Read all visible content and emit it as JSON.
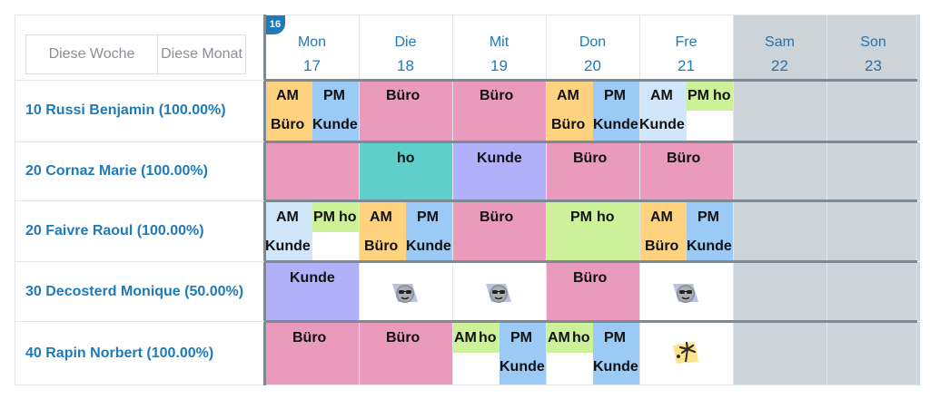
{
  "toolbar": {
    "this_week_label": "Diese Woche",
    "this_month_label": "Diese Monat"
  },
  "week_badge": "16",
  "days": [
    {
      "name": "Mon",
      "date": "17",
      "weekend": false
    },
    {
      "name": "Die",
      "date": "18",
      "weekend": false
    },
    {
      "name": "Mit",
      "date": "19",
      "weekend": false
    },
    {
      "name": "Don",
      "date": "20",
      "weekend": false
    },
    {
      "name": "Fre",
      "date": "21",
      "weekend": false
    },
    {
      "name": "Sam",
      "date": "22",
      "weekend": true
    },
    {
      "name": "Son",
      "date": "23",
      "weekend": true
    }
  ],
  "employees": [
    {
      "label": "10 Russi Benjamin (100.00%)"
    },
    {
      "label": "20 Cornaz Marie (100.00%)"
    },
    {
      "label": "20 Faivre Raoul (100.00%)"
    },
    {
      "label": "30 Decosterd Monique (50.00%)"
    },
    {
      "label": "40 Rapin Norbert (100.00%)"
    }
  ],
  "labels": {
    "am": "AM",
    "pm": "PM",
    "ho": "ho",
    "office": "Büro",
    "client": "Kunde"
  },
  "colors": {
    "accent": "#1e7ab8",
    "office": "#e99abd",
    "client": "#b1b1fb",
    "homeoffice_teal": "#5ecfcb",
    "homeoffice_green": "#cdf199",
    "am_orange": "#ffd27f",
    "pm_blue": "#9ccaf7",
    "light_blue": "#d2e6fa",
    "weekend": "#ccd4da"
  },
  "icons": {
    "absence": "sunglasses-face-icon",
    "vacation": "palm-tree-beach-icon"
  },
  "schedule": [
    [
      {
        "type": "split",
        "am": [
          "am",
          "office"
        ],
        "pm": [
          "pm",
          "client"
        ]
      },
      {
        "type": "full",
        "label": "office",
        "color": "office"
      },
      {
        "type": "full",
        "label": "office",
        "color": "office"
      },
      {
        "type": "split",
        "am": [
          "am",
          "office"
        ],
        "pm": [
          "pm",
          "client"
        ]
      },
      {
        "type": "split2",
        "am": [
          "am",
          "client"
        ],
        "pm": [
          "pm",
          "ho"
        ]
      },
      {
        "type": "weekend"
      },
      {
        "type": "weekend"
      }
    ],
    [
      {
        "type": "full",
        "label": "",
        "color": "office"
      },
      {
        "type": "full",
        "label": "ho",
        "color": "homeoffice_teal"
      },
      {
        "type": "full",
        "label": "client",
        "color": "client"
      },
      {
        "type": "full",
        "label": "office",
        "color": "office"
      },
      {
        "type": "full",
        "label": "office",
        "color": "office"
      },
      {
        "type": "weekend"
      },
      {
        "type": "weekend"
      }
    ],
    [
      {
        "type": "split3"
      },
      {
        "type": "split",
        "am": [
          "am",
          "office"
        ],
        "pm": [
          "pm",
          "client"
        ]
      },
      {
        "type": "full",
        "label": "office",
        "color": "office"
      },
      {
        "type": "pmho"
      },
      {
        "type": "split",
        "am": [
          "am",
          "office"
        ],
        "pm": [
          "pm",
          "client"
        ]
      },
      {
        "type": "weekend"
      },
      {
        "type": "weekend"
      }
    ],
    [
      {
        "type": "full",
        "label": "client",
        "color": "client"
      },
      {
        "type": "icon",
        "icon": "absence"
      },
      {
        "type": "icon",
        "icon": "absence"
      },
      {
        "type": "full",
        "label": "office",
        "color": "office"
      },
      {
        "type": "icon",
        "icon": "absence"
      },
      {
        "type": "weekend"
      },
      {
        "type": "weekend"
      }
    ],
    [
      {
        "type": "full",
        "label": "office",
        "color": "office"
      },
      {
        "type": "full",
        "label": "office",
        "color": "office"
      },
      {
        "type": "amho"
      },
      {
        "type": "amho"
      },
      {
        "type": "icon",
        "icon": "vacation"
      },
      {
        "type": "weekend"
      },
      {
        "type": "weekend"
      }
    ]
  ]
}
